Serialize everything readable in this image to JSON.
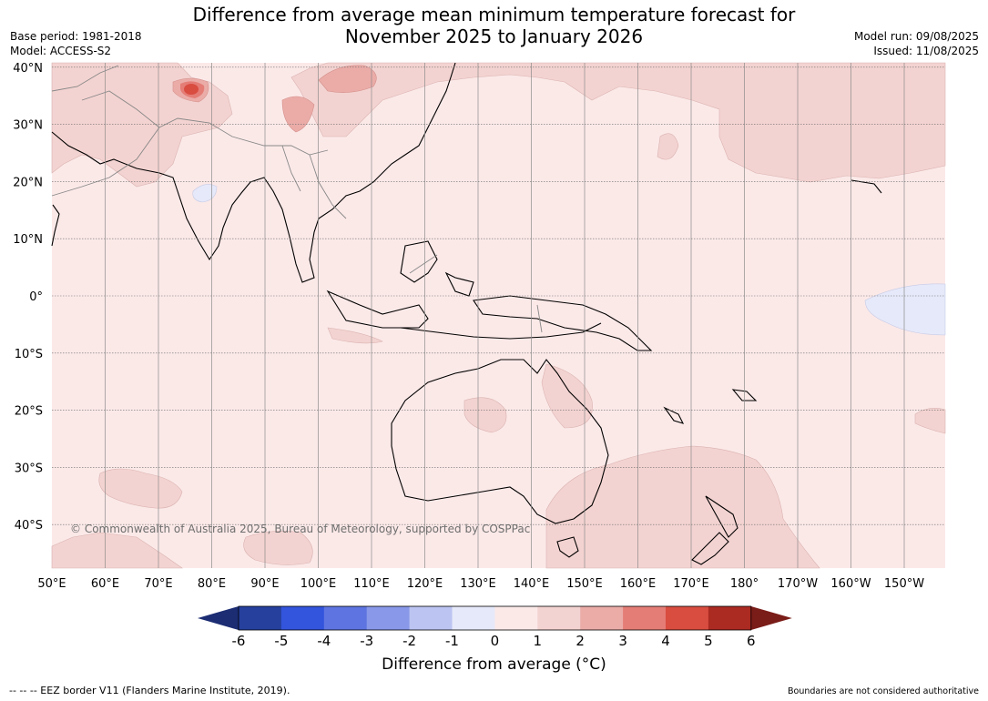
{
  "title": {
    "line1": "Difference from average mean minimum temperature forecast for",
    "line2": "November 2025 to January 2026"
  },
  "meta_left": {
    "base_period": "Base period: 1981-2018",
    "model": "Model: ACCESS-S2"
  },
  "meta_right": {
    "model_run": "Model run: 09/08/2025",
    "issued": "Issued: 11/08/2025"
  },
  "map": {
    "lat_labels": [
      "40°N",
      "30°N",
      "20°N",
      "10°N",
      "0°",
      "10°S",
      "20°S",
      "30°S",
      "40°S"
    ],
    "lat_values": [
      40,
      30,
      20,
      10,
      0,
      -10,
      -20,
      -30,
      -40
    ],
    "lon_labels": [
      "50°E",
      "60°E",
      "70°E",
      "80°E",
      "90°E",
      "100°E",
      "110°E",
      "120°E",
      "130°E",
      "140°E",
      "150°E",
      "160°E",
      "170°E",
      "180°",
      "170°W",
      "160°W",
      "150°W"
    ],
    "lon_values": [
      50,
      60,
      70,
      80,
      90,
      100,
      110,
      120,
      130,
      140,
      150,
      160,
      170,
      180,
      190,
      200,
      210
    ],
    "base_fill_color": "#fbe9e8",
    "copyright": "© Commonwealth of Australia 2025, Bureau of Meteorology, supported by COSPPac"
  },
  "colorbar": {
    "levels": [
      "-6",
      "-5",
      "-4",
      "-3",
      "-2",
      "-1",
      "0",
      "1",
      "2",
      "3",
      "4",
      "5",
      "6"
    ],
    "colors": [
      "#26409e",
      "#3354dc",
      "#5e74e0",
      "#8998e8",
      "#bcc4f2",
      "#e6e9f9",
      "#fbe9e8",
      "#f3d3d1",
      "#ebaca8",
      "#e47d76",
      "#d94c40",
      "#ab2a22"
    ],
    "under_color": "#1c2d73",
    "over_color": "#7a1c18",
    "label": "Difference from average (°C)"
  },
  "footer": {
    "eez": "--  --  -- EEZ border V11 (Flanders Marine Institute, 2019).",
    "boundaries": "Boundaries are not considered authoritative"
  }
}
